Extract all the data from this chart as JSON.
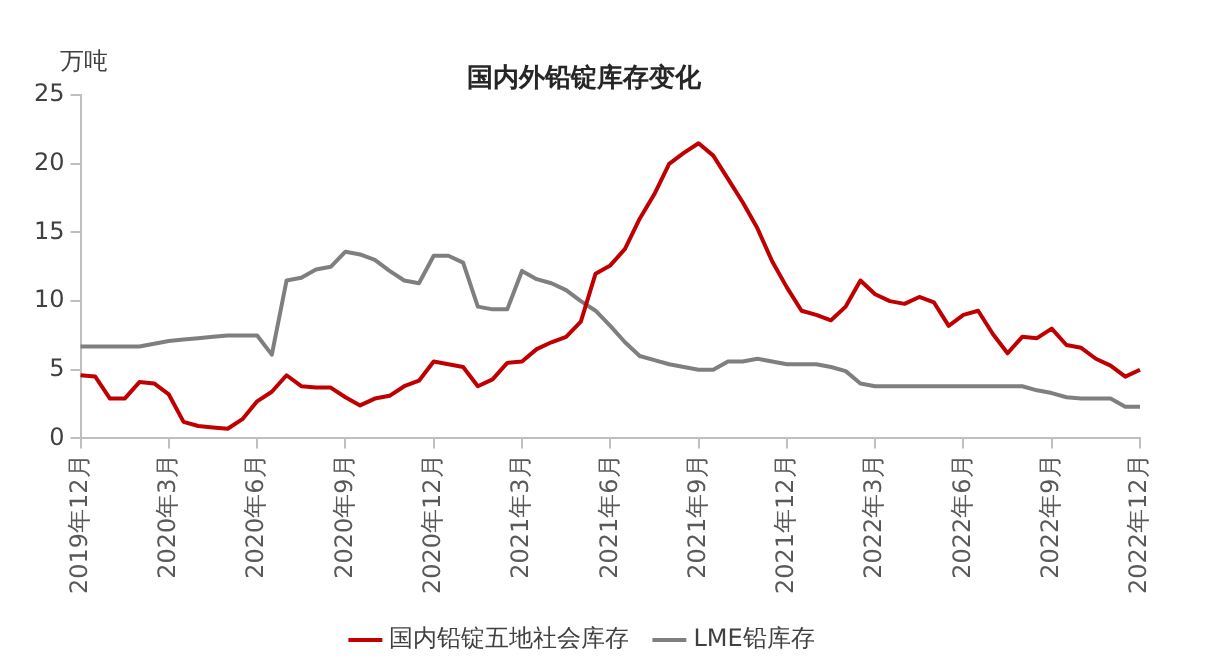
{
  "chart_data": {
    "type": "line",
    "title": "国内外铅锭库存变化",
    "ylabel": "万吨",
    "categories": [
      "2019年12月",
      null,
      null,
      null,
      null,
      null,
      "2020年3月",
      null,
      null,
      null,
      null,
      null,
      "2020年6月",
      null,
      null,
      null,
      null,
      null,
      "2020年9月",
      null,
      null,
      null,
      null,
      null,
      "2020年12月",
      null,
      null,
      null,
      null,
      null,
      "2021年3月",
      null,
      null,
      null,
      null,
      null,
      "2021年6月",
      null,
      null,
      null,
      null,
      null,
      "2021年9月",
      null,
      null,
      null,
      null,
      null,
      "2021年12月",
      null,
      null,
      null,
      null,
      null,
      "2022年3月",
      null,
      null,
      null,
      null,
      null,
      "2022年6月",
      null,
      null,
      null,
      null,
      null,
      "2022年9月",
      null,
      null,
      null,
      null,
      null,
      "2022年12月"
    ],
    "series": [
      {
        "name": "国内铅锭五地社会库存",
        "color": "#c00000",
        "values": [
          4.6,
          4.5,
          2.9,
          2.9,
          4.1,
          4.0,
          3.2,
          1.2,
          0.9,
          0.8,
          0.7,
          1.4,
          2.7,
          3.4,
          4.6,
          3.8,
          3.7,
          3.7,
          3.0,
          2.4,
          2.9,
          3.1,
          3.8,
          4.2,
          5.6,
          5.4,
          5.2,
          3.8,
          4.3,
          5.5,
          5.6,
          6.5,
          7.0,
          7.4,
          8.5,
          12.0,
          12.6,
          13.8,
          16.0,
          17.8,
          20.0,
          20.8,
          21.5,
          20.6,
          18.9,
          17.2,
          15.3,
          12.9,
          11.0,
          9.3,
          9.0,
          8.6,
          9.6,
          11.5,
          10.5,
          10.0,
          9.8,
          10.3,
          9.9,
          8.2,
          9.0,
          9.3,
          7.6,
          6.2,
          7.4,
          7.3,
          8.0,
          6.8,
          6.6,
          5.8,
          5.3,
          4.5,
          5.0
        ]
      },
      {
        "name": "LME铅库存",
        "color": "#7f7f7f",
        "values": [
          6.7,
          6.7,
          6.7,
          6.7,
          6.7,
          6.9,
          7.1,
          7.2,
          7.3,
          7.4,
          7.5,
          7.5,
          7.5,
          6.1,
          11.5,
          11.7,
          12.3,
          12.5,
          13.6,
          13.4,
          13.0,
          12.2,
          11.5,
          11.3,
          13.3,
          13.3,
          12.8,
          9.6,
          9.4,
          9.4,
          12.2,
          11.6,
          11.3,
          10.8,
          10.0,
          9.3,
          8.2,
          7.0,
          6.0,
          5.7,
          5.4,
          5.2,
          5.0,
          5.0,
          5.6,
          5.6,
          5.8,
          5.6,
          5.4,
          5.4,
          5.4,
          5.2,
          4.9,
          4.0,
          3.8,
          3.8,
          3.8,
          3.8,
          3.8,
          3.8,
          3.8,
          3.8,
          3.8,
          3.8,
          3.8,
          3.5,
          3.3,
          3.0,
          2.9,
          2.9,
          2.9,
          2.3,
          2.3
        ]
      }
    ],
    "ylim": [
      0,
      25
    ],
    "yticks": [
      0,
      5,
      10,
      15,
      20,
      25
    ],
    "grid": false,
    "legend": "bottom",
    "marker": "none",
    "line_style": "solid"
  }
}
